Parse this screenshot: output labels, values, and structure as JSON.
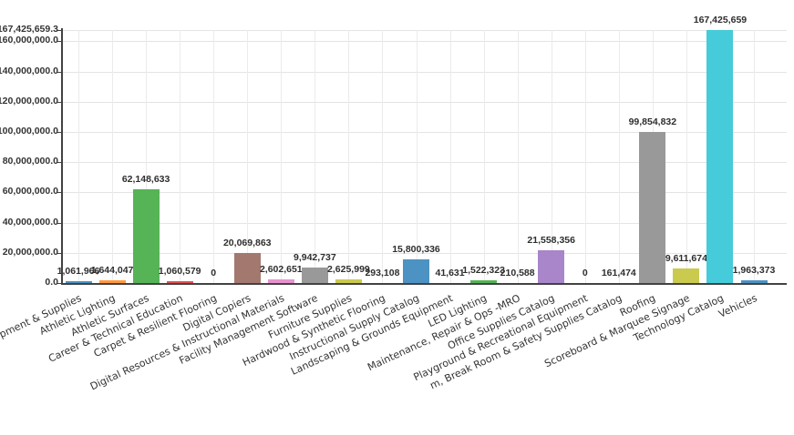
{
  "chart_data": {
    "type": "bar",
    "title": "",
    "xlabel": "",
    "ylabel": "",
    "legend": "none",
    "grid": true,
    "ylim": [
      0,
      167425659.3
    ],
    "yticks": [
      0,
      20000000,
      40000000,
      60000000,
      80000000,
      100000000,
      120000000,
      140000000,
      160000000,
      167425659.3
    ],
    "categories": [
      "pment & Supplies",
      "Athletic Lighting",
      "Athletic Surfaces",
      "Career & Technical Education",
      "Carpet & Resilient Flooring",
      "Digital Copiers",
      "Digital Resources & Instructional Materials",
      "Facility Management Software",
      "Furniture Supplies",
      "Hardwood & Synthetic Flooring",
      "Instructional Supply Catalog",
      "Landscaping & Grounds Equipment",
      "LED Lighting",
      "Maintenance, Repair & Ops -MRO",
      "Office Supplies Catalog",
      "Playground & Recreational Equipment",
      "m, Break Room & Safety Supplies Catalog",
      "Roofing",
      "Scoreboard & Marquee Signage",
      "Technology Catalog",
      "Vehicles"
    ],
    "values": [
      1061966,
      1644047,
      62148633,
      1060579,
      0,
      20069863,
      2602651,
      9942737,
      2625999,
      293108,
      15800336,
      41631,
      1522323,
      210588,
      21558356,
      0,
      161474,
      99854832,
      9611674,
      167425659,
      1963373
    ],
    "value_labels": true,
    "bar_color_cycle": [
      "#4c92c3",
      "#ff993e",
      "#56b356",
      "#de5253",
      "#a985ca",
      "#a3786f",
      "#e992ce",
      "#999999",
      "#c9ca4e",
      "#45cbd9"
    ]
  },
  "colors": {
    "background": "#ffffff",
    "axis": "#424242",
    "gridline": "#e4e4e4",
    "text": "#333333"
  }
}
